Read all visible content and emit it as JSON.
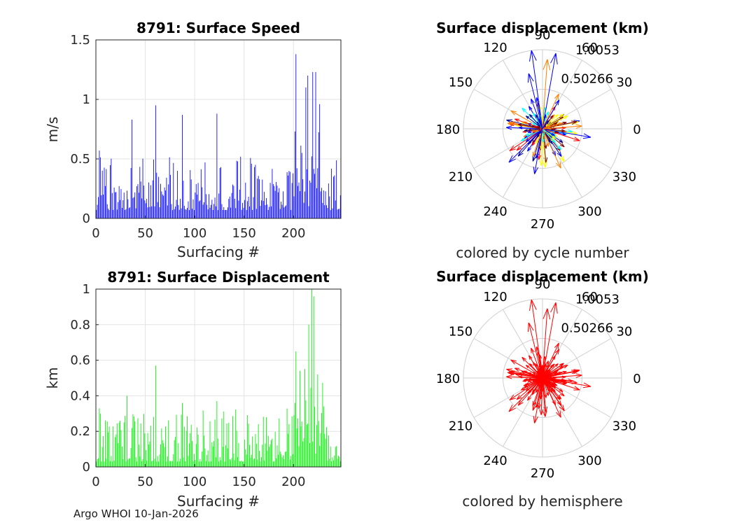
{
  "chart_data": [
    {
      "type": "bar",
      "title": "8791: Surface Speed",
      "xlabel": "Surfacing #",
      "ylabel": "m/s",
      "xlim": [
        0,
        248
      ],
      "ylim": [
        0,
        1.5
      ],
      "xticks": [
        0,
        50,
        100,
        150,
        200
      ],
      "yticks": [
        0,
        0.5,
        1,
        1.5
      ],
      "ytick_labels": [
        "0",
        "0.5",
        "1",
        "1.5"
      ],
      "grid": true,
      "color": "#0000ff",
      "peaks": [
        {
          "x": 4,
          "value": 0.57
        },
        {
          "x": 37,
          "value": 0.83
        },
        {
          "x": 61,
          "value": 0.95
        },
        {
          "x": 88,
          "value": 0.87
        },
        {
          "x": 123,
          "value": 0.88
        },
        {
          "x": 203,
          "value": 1.38
        },
        {
          "x": 213,
          "value": 1.1
        },
        {
          "x": 215,
          "value": 1.2
        },
        {
          "x": 220,
          "value": 1.23
        },
        {
          "x": 223,
          "value": 1.23
        },
        {
          "x": 227,
          "value": 0.96
        }
      ]
    },
    {
      "type": "bar",
      "title": "8791: Surface Displacement",
      "xlabel": "Surfacing #",
      "ylabel": "km",
      "xlim": [
        0,
        248
      ],
      "ylim": [
        0,
        1
      ],
      "xticks": [
        0,
        50,
        100,
        150,
        200
      ],
      "yticks": [
        0,
        0.2,
        0.4,
        0.6,
        0.8,
        1
      ],
      "ytick_labels": [
        "0",
        "0.2",
        "0.4",
        "0.6",
        "0.8",
        "1"
      ],
      "grid": true,
      "color": "#00ee00",
      "peaks": [
        {
          "x": 5,
          "value": 0.3
        },
        {
          "x": 32,
          "value": 0.4
        },
        {
          "x": 61,
          "value": 0.57
        },
        {
          "x": 88,
          "value": 0.36
        },
        {
          "x": 123,
          "value": 0.37
        },
        {
          "x": 203,
          "value": 0.65
        },
        {
          "x": 212,
          "value": 0.55
        },
        {
          "x": 216,
          "value": 0.8
        },
        {
          "x": 219,
          "value": 1.0
        },
        {
          "x": 221,
          "value": 0.96
        },
        {
          "x": 225,
          "value": 0.52
        }
      ]
    },
    {
      "type": "polar-compass",
      "title": "Surface displacement (km)",
      "subtitle": "colored by cycle number",
      "rmax": 1.0053,
      "ring_labels": [
        "0.50266",
        "1.0053"
      ],
      "angle_labels": [
        "0",
        "30",
        "60",
        "90",
        "120",
        "150",
        "180",
        "210",
        "240",
        "270",
        "300",
        "330"
      ],
      "color_scale": [
        "#00008f",
        "#0000ff",
        "#00ffff",
        "#ffff00",
        "#ff8000",
        "#ff0000",
        "#800000"
      ],
      "long_arrows": [
        {
          "angle_deg": 98,
          "r": 1.0
        },
        {
          "angle_deg": 80,
          "r": 0.97
        },
        {
          "angle_deg": 86,
          "r": 0.88
        },
        {
          "angle_deg": 104,
          "r": 0.72
        },
        {
          "angle_deg": 350,
          "r": 0.62
        },
        {
          "angle_deg": 4,
          "r": 0.5
        },
        {
          "angle_deg": 225,
          "r": 0.6
        },
        {
          "angle_deg": 260,
          "r": 0.58
        },
        {
          "angle_deg": 295,
          "r": 0.55
        },
        {
          "angle_deg": 60,
          "r": 0.42
        }
      ]
    },
    {
      "type": "polar-compass",
      "title": "Surface displacement (km)",
      "subtitle": "colored by hemisphere",
      "rmax": 1.0053,
      "ring_labels": [
        "0.50266",
        "1.0053"
      ],
      "angle_labels": [
        "0",
        "30",
        "60",
        "90",
        "120",
        "150",
        "180",
        "210",
        "240",
        "270",
        "300",
        "330"
      ],
      "color": "#ff0000",
      "long_arrows": [
        {
          "angle_deg": 98,
          "r": 1.0
        },
        {
          "angle_deg": 80,
          "r": 0.97
        },
        {
          "angle_deg": 86,
          "r": 0.88
        },
        {
          "angle_deg": 104,
          "r": 0.72
        },
        {
          "angle_deg": 350,
          "r": 0.62
        },
        {
          "angle_deg": 4,
          "r": 0.5
        },
        {
          "angle_deg": 225,
          "r": 0.6
        },
        {
          "angle_deg": 260,
          "r": 0.58
        },
        {
          "angle_deg": 295,
          "r": 0.55
        },
        {
          "angle_deg": 60,
          "r": 0.42
        }
      ]
    }
  ],
  "footer": "Argo WHOI 10-Jan-2026"
}
